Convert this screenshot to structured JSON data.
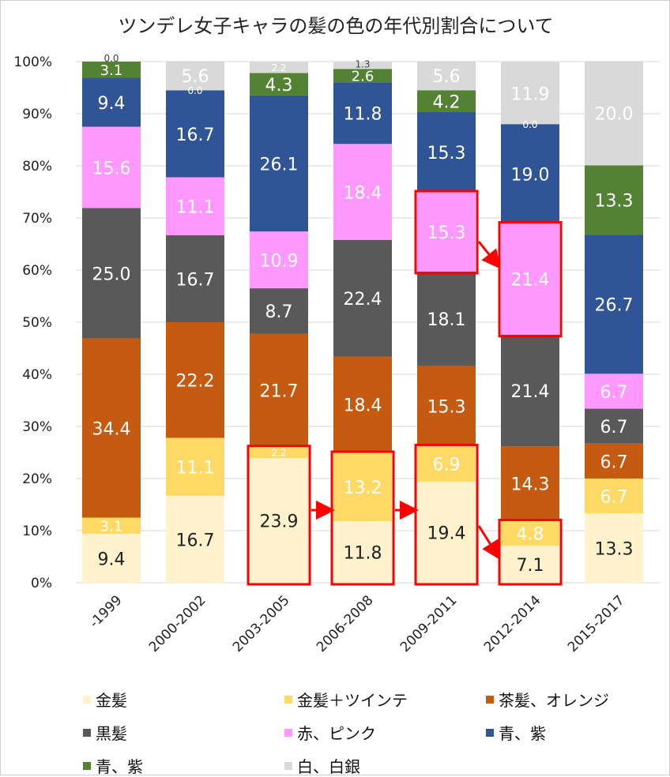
{
  "chart_data": {
    "type": "bar",
    "stacked": true,
    "title": "ツンデレ女子キャラの髪の色の年代別割合について",
    "categories": [
      "-1999",
      "2000-2002",
      "2003-2005",
      "2006-2008",
      "2009-2011",
      "2012-2014",
      "2015-2017"
    ],
    "ylim": [
      0,
      100
    ],
    "yticks": [
      "0%",
      "10%",
      "20%",
      "30%",
      "40%",
      "50%",
      "60%",
      "70%",
      "80%",
      "90%",
      "100%"
    ],
    "grid": true,
    "legend_placement": "bottom",
    "series": [
      {
        "name": "金髪",
        "color": "#FFF2CC",
        "label_color": "#222222",
        "values": [
          9.4,
          16.7,
          23.9,
          11.8,
          19.4,
          7.1,
          13.3
        ]
      },
      {
        "name": "金髪＋ツインテ",
        "color": "#FFD966",
        "label_color": "#ffffff",
        "values": [
          3.1,
          11.1,
          2.2,
          13.2,
          6.9,
          4.8,
          6.7
        ]
      },
      {
        "name": "茶髪、オレンジ",
        "color": "#C55A11",
        "label_color": "#ffffff",
        "values": [
          34.4,
          22.2,
          21.7,
          18.4,
          15.3,
          14.3,
          6.7
        ]
      },
      {
        "name": "黒髪",
        "color": "#595959",
        "label_color": "#ffffff",
        "values": [
          25.0,
          16.7,
          8.7,
          22.4,
          18.1,
          21.4,
          6.7
        ]
      },
      {
        "name": "赤、ピンク",
        "color": "#FF99FF",
        "label_color": "#ffffff",
        "values": [
          15.6,
          11.1,
          10.9,
          18.4,
          15.3,
          21.4,
          6.7
        ]
      },
      {
        "name": "青、紫",
        "color": "#2F5597",
        "label_color": "#ffffff",
        "values": [
          9.4,
          16.7,
          26.1,
          11.8,
          15.3,
          19.0,
          26.7
        ]
      },
      {
        "name": "青、紫",
        "color": "#548235",
        "label_color": "#ffffff",
        "values": [
          3.1,
          0.0,
          4.3,
          2.6,
          4.2,
          0.0,
          13.3
        ]
      },
      {
        "name": "白、白銀",
        "color": "#D9D9D9",
        "label_color": "#ffffff",
        "values": [
          0.0,
          5.6,
          2.2,
          1.3,
          5.6,
          11.9,
          20.0
        ]
      }
    ],
    "annotations": {
      "highlight_color": "#FF0000",
      "boxes": [
        {
          "category": "2003-2005",
          "series": [
            0,
            1
          ]
        },
        {
          "category": "2006-2008",
          "series": [
            0,
            1
          ]
        },
        {
          "category": "2009-2011",
          "series": [
            0,
            1
          ]
        },
        {
          "category": "2012-2014",
          "series": [
            0,
            1
          ]
        },
        {
          "category": "2009-2011",
          "series": [
            4
          ]
        },
        {
          "category": "2012-2014",
          "series": [
            4
          ]
        }
      ],
      "arrows": [
        {
          "from": "2003-2005",
          "to": "2006-2008"
        },
        {
          "from": "2006-2008",
          "to": "2009-2011"
        },
        {
          "from": "2009-2011",
          "to": "2012-2014"
        },
        {
          "from": "2009-2011",
          "to": "2012-2014",
          "series": "赤、ピンク"
        }
      ]
    }
  }
}
